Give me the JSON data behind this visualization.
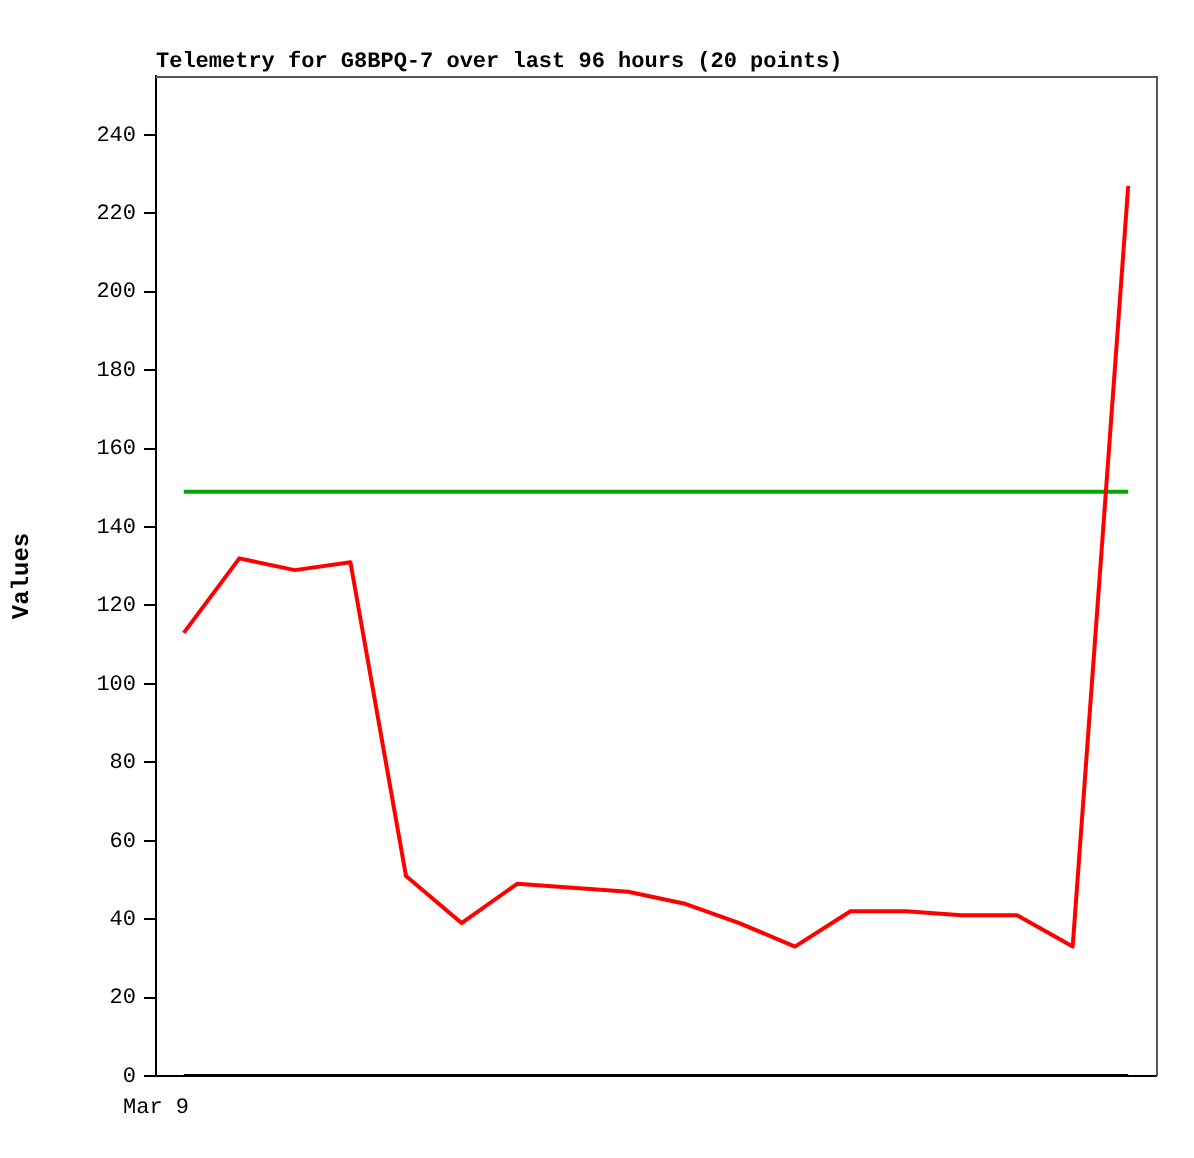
{
  "chart_data": {
    "type": "line",
    "title": "Telemetry for G8BPQ-7 over last 96 hours (20 points)",
    "ylabel": "Values",
    "annotations": [
      "Mar 9"
    ],
    "categories": [
      null,
      null,
      null,
      null,
      null,
      null,
      null,
      null,
      null,
      null,
      null,
      null,
      null,
      null,
      null,
      null,
      null,
      null
    ],
    "ylim": [
      0,
      255
    ],
    "yticks": [
      0,
      20,
      40,
      60,
      80,
      100,
      120,
      140,
      160,
      180,
      200,
      220,
      240
    ],
    "grid": false,
    "legend": false,
    "marker": "none",
    "line_style": "solid",
    "series": [
      {
        "color": "#ff0000",
        "values": [
          113,
          132,
          129,
          131,
          51,
          39,
          49,
          48,
          47,
          44,
          39,
          33,
          42,
          42,
          41,
          41,
          33,
          227
        ]
      },
      {
        "color": "#00aa00",
        "values": [
          149,
          null,
          null,
          null,
          null,
          null,
          null,
          null,
          null,
          null,
          null,
          null,
          null,
          null,
          null,
          null,
          null,
          149
        ]
      },
      {
        "color": "#000000",
        "values": [
          0,
          null,
          null,
          null,
          null,
          null,
          null,
          null,
          null,
          null,
          null,
          null,
          null,
          null,
          null,
          null,
          null,
          0
        ]
      }
    ]
  }
}
